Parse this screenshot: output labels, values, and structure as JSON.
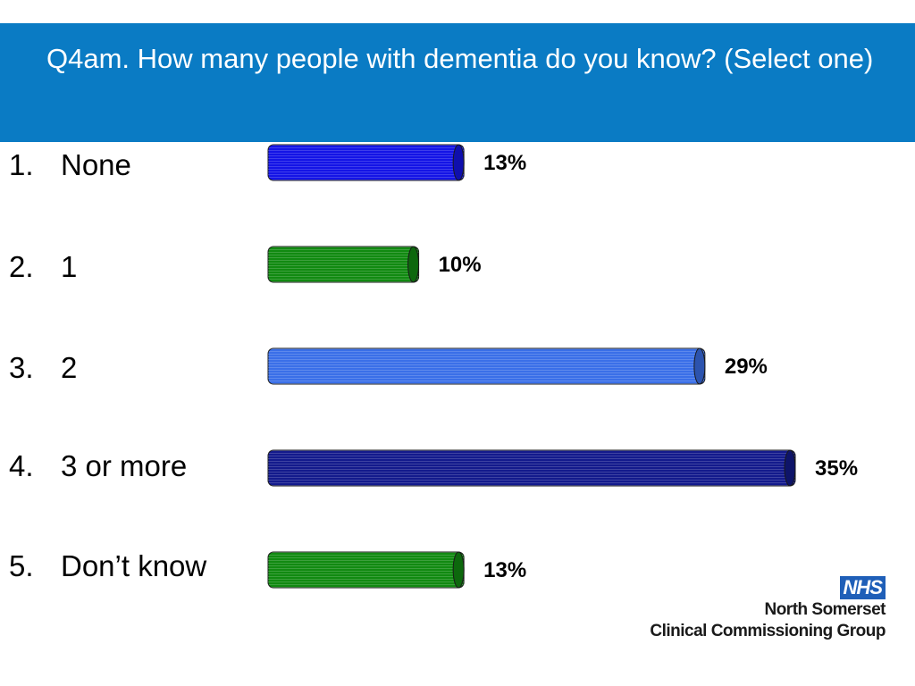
{
  "title": "Q4am. How many people with dementia do you know? (Select one)",
  "logo": {
    "badge": "NHS",
    "line1": "North Somerset",
    "line2": "Clinical Commissioning Group"
  },
  "chart_data": {
    "type": "bar",
    "orientation": "horizontal",
    "categories": [
      "None",
      "1",
      "2",
      "3 or more",
      "Don’t know"
    ],
    "category_numbers": [
      "1.",
      "2.",
      "3.",
      "4.",
      "5."
    ],
    "values": [
      13,
      10,
      29,
      35,
      13
    ],
    "value_labels": [
      "13%",
      "10%",
      "29%",
      "35%",
      "13%"
    ],
    "unit": "%",
    "colors": [
      "#1414e6",
      "#118a11",
      "#3a6fe8",
      "#131a8c",
      "#118a11"
    ],
    "xlim": [
      0,
      35
    ],
    "grid": false,
    "legend": "none"
  }
}
